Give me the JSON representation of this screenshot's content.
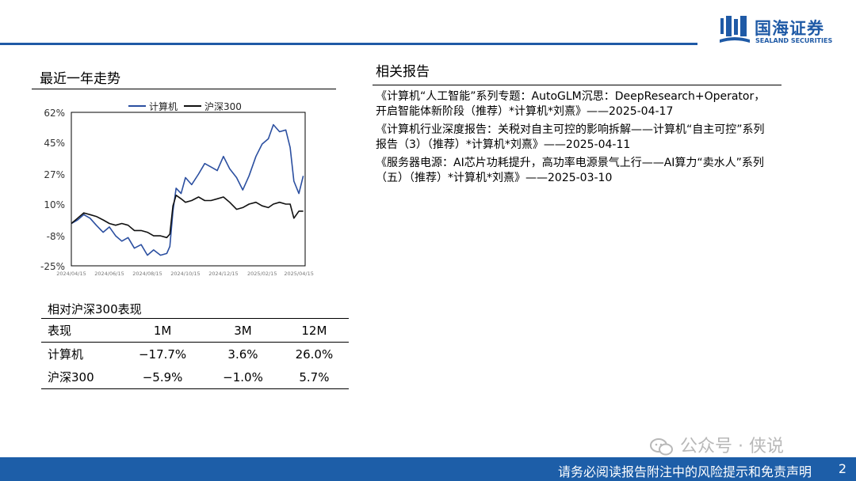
{
  "brand": {
    "name_cn": "国海证券",
    "name_en": "SEALAND SECURITIES",
    "color": "#1f5aa6"
  },
  "left_section": {
    "title": "最近一年走势"
  },
  "right_section": {
    "title": "相关报告"
  },
  "chart_data": {
    "type": "line",
    "legend": [
      "计算机",
      "沪深300"
    ],
    "legend_position": "top-center",
    "y_ticks": [
      "62%",
      "45%",
      "27%",
      "10%",
      "-8%",
      "-25%"
    ],
    "y_tick_values": [
      62,
      45,
      27,
      10,
      -8,
      -25
    ],
    "ylim": [
      -25,
      62
    ],
    "x_ticks": [
      "2024/04/15",
      "2024/06/15",
      "2024/08/15",
      "2024/10/15",
      "2024/12/15",
      "2025/02/15",
      "2025/04/15"
    ],
    "xlim": [
      "2024/04/15",
      "2025/04/25"
    ],
    "grid": false,
    "series": [
      {
        "name": "计算机",
        "color": "#2b4fa0",
        "x": [
          "2024/04/15",
          "2024/04/25",
          "2024/05/05",
          "2024/05/15",
          "2024/05/25",
          "2024/06/05",
          "2024/06/15",
          "2024/06/25",
          "2024/07/05",
          "2024/07/15",
          "2024/07/25",
          "2024/08/05",
          "2024/08/15",
          "2024/08/25",
          "2024/09/05",
          "2024/09/15",
          "2024/09/20",
          "2024/09/25",
          "2024/09/30",
          "2024/10/08",
          "2024/10/15",
          "2024/10/25",
          "2024/11/05",
          "2024/11/15",
          "2024/11/25",
          "2024/12/05",
          "2024/12/15",
          "2024/12/25",
          "2025/01/05",
          "2025/01/15",
          "2025/01/25",
          "2025/02/05",
          "2025/02/15",
          "2025/02/25",
          "2025/03/05",
          "2025/03/15",
          "2025/03/25",
          "2025/04/01",
          "2025/04/07",
          "2025/04/15",
          "2025/04/22"
        ],
        "values": [
          -1,
          1,
          4,
          2,
          -2,
          -6,
          -3,
          -8,
          -11,
          -9,
          -15,
          -13,
          -19,
          -16,
          -19,
          -18,
          -14,
          6,
          19,
          16,
          25,
          21,
          27,
          33,
          31,
          29,
          37,
          30,
          25,
          18,
          26,
          37,
          44,
          47,
          55,
          51,
          52,
          42,
          23,
          16,
          26
        ]
      },
      {
        "name": "沪深300",
        "color": "#111111",
        "x": [
          "2024/04/15",
          "2024/04/25",
          "2024/05/05",
          "2024/05/15",
          "2024/05/25",
          "2024/06/05",
          "2024/06/15",
          "2024/06/25",
          "2024/07/05",
          "2024/07/15",
          "2024/07/25",
          "2024/08/05",
          "2024/08/15",
          "2024/08/25",
          "2024/09/05",
          "2024/09/15",
          "2024/09/20",
          "2024/09/25",
          "2024/09/30",
          "2024/10/08",
          "2024/10/15",
          "2024/10/25",
          "2024/11/05",
          "2024/11/15",
          "2024/11/25",
          "2024/12/05",
          "2024/12/15",
          "2024/12/25",
          "2025/01/05",
          "2025/01/15",
          "2025/01/25",
          "2025/02/05",
          "2025/02/15",
          "2025/02/25",
          "2025/03/05",
          "2025/03/15",
          "2025/03/25",
          "2025/04/01",
          "2025/04/07",
          "2025/04/15",
          "2025/04/22"
        ],
        "values": [
          -1,
          2,
          5,
          4,
          3,
          1,
          -1,
          -2,
          -1,
          -2,
          -5,
          -5,
          -6,
          -8,
          -8,
          -9,
          -7,
          9,
          15,
          13,
          11,
          12,
          14,
          12,
          12,
          13,
          14,
          11,
          7,
          8,
          10,
          11,
          9,
          8,
          10,
          11,
          10,
          10,
          2,
          6,
          6
        ]
      }
    ]
  },
  "performance": {
    "title": "相对沪深300表现",
    "headers": [
      "表现",
      "1M",
      "3M",
      "12M"
    ],
    "rows": [
      [
        "计算机",
        "−17.7%",
        "3.6%",
        "26.0%"
      ],
      [
        "沪深300",
        "−5.9%",
        "−1.0%",
        "5.7%"
      ]
    ]
  },
  "reports": [
    "《计算机“人工智能”系列专题：AutoGLM沉思：DeepResearch+Operator，开启智能体新阶段（推荐）*计算机*刘熹》——2025-04-17",
    "《计算机行业深度报告：关税对自主可控的影响拆解——计算机“自主可控”系列报告（3）（推荐）*计算机*刘熹》——2025-04-11",
    "《服务器电源：AI芯片功耗提升，高功率电源景气上行——AI算力“卖水人”系列（五）（推荐）*计算机*刘熹》——2025-03-10"
  ],
  "watermark": {
    "text": "公众号 · 侠说",
    "icon": "wechat-icon"
  },
  "footer": {
    "disclaimer": "请务必阅读报告附注中的风险提示和免责声明",
    "page": "2",
    "color": "#1d5ea8"
  }
}
